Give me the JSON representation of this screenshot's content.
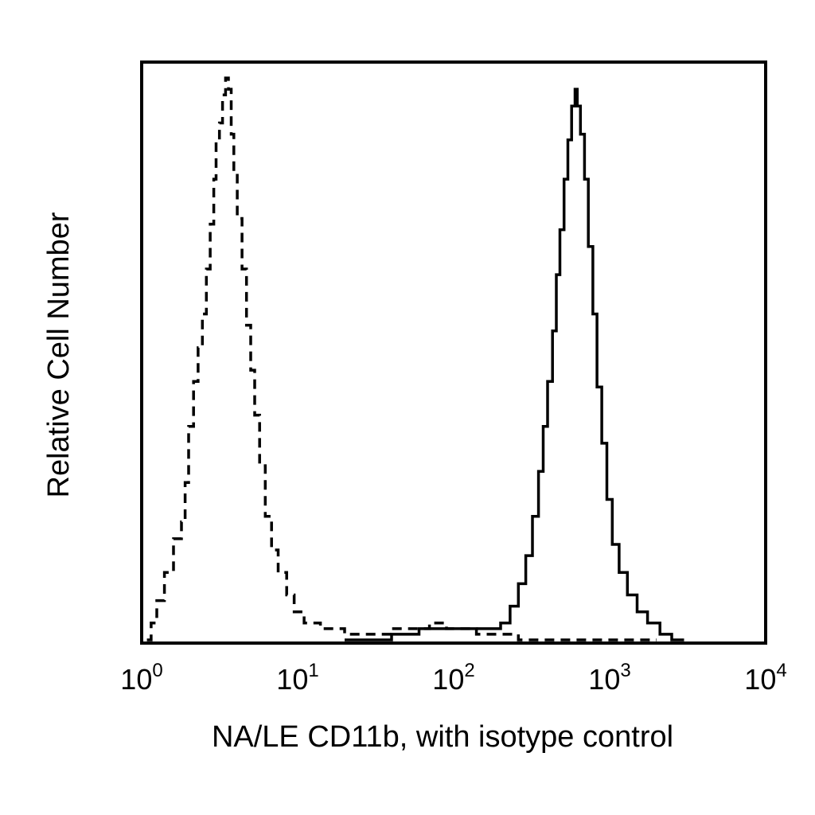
{
  "chart_data": {
    "type": "area",
    "title": "",
    "xlabel": "NA/LE CD11b, with isotype control",
    "ylabel": "Relative Cell Number",
    "x_scale": "log",
    "xlim": [
      1,
      10000
    ],
    "ylim": [
      0,
      100
    ],
    "x_ticks": [
      {
        "value": 1,
        "base": "10",
        "exp": "0"
      },
      {
        "value": 10,
        "base": "10",
        "exp": "1"
      },
      {
        "value": 100,
        "base": "10",
        "exp": "2"
      },
      {
        "value": 1000,
        "base": "10",
        "exp": "3"
      },
      {
        "value": 10000,
        "base": "10",
        "exp": "4"
      }
    ],
    "grid": false,
    "legend": "none",
    "series": [
      {
        "style": "dashed",
        "color": "#000000",
        "points": [
          [
            1.08,
            0
          ],
          [
            1.15,
            3
          ],
          [
            1.25,
            7
          ],
          [
            1.4,
            12
          ],
          [
            1.6,
            18
          ],
          [
            1.8,
            21
          ],
          [
            1.9,
            28
          ],
          [
            2.0,
            38
          ],
          [
            2.15,
            46
          ],
          [
            2.3,
            52
          ],
          [
            2.45,
            58
          ],
          [
            2.6,
            66
          ],
          [
            2.75,
            74
          ],
          [
            2.9,
            82
          ],
          [
            3.0,
            89
          ],
          [
            3.15,
            92
          ],
          [
            3.3,
            97
          ],
          [
            3.45,
            100
          ],
          [
            3.6,
            98
          ],
          [
            3.75,
            90
          ],
          [
            3.9,
            83
          ],
          [
            4.1,
            75
          ],
          [
            4.4,
            66
          ],
          [
            4.7,
            56
          ],
          [
            5.0,
            48
          ],
          [
            5.3,
            40
          ],
          [
            5.7,
            31
          ],
          [
            6.2,
            22
          ],
          [
            6.8,
            16
          ],
          [
            7.5,
            12
          ],
          [
            8.5,
            8
          ],
          [
            9.5,
            5
          ],
          [
            11,
            3
          ],
          [
            14,
            2
          ],
          [
            20,
            1
          ],
          [
            30,
            1
          ],
          [
            40,
            2
          ],
          [
            55,
            2
          ],
          [
            70,
            3
          ],
          [
            90,
            2
          ],
          [
            110,
            2
          ],
          [
            140,
            1
          ],
          [
            180,
            1
          ],
          [
            260,
            0
          ],
          [
            600,
            0
          ],
          [
            2000,
            0
          ]
        ]
      },
      {
        "style": "solid",
        "color": "#000000",
        "points": [
          [
            20,
            0
          ],
          [
            40,
            1
          ],
          [
            60,
            2
          ],
          [
            80,
            2
          ],
          [
            100,
            2
          ],
          [
            130,
            2
          ],
          [
            160,
            2
          ],
          [
            200,
            3
          ],
          [
            230,
            6
          ],
          [
            260,
            10
          ],
          [
            290,
            15
          ],
          [
            320,
            22
          ],
          [
            350,
            30
          ],
          [
            375,
            38
          ],
          [
            400,
            46
          ],
          [
            430,
            55
          ],
          [
            455,
            65
          ],
          [
            480,
            73
          ],
          [
            510,
            82
          ],
          [
            540,
            89
          ],
          [
            570,
            95
          ],
          [
            600,
            98
          ],
          [
            620,
            95
          ],
          [
            650,
            90
          ],
          [
            690,
            82
          ],
          [
            730,
            70
          ],
          [
            780,
            58
          ],
          [
            830,
            45
          ],
          [
            890,
            35
          ],
          [
            960,
            25
          ],
          [
            1040,
            17
          ],
          [
            1150,
            12
          ],
          [
            1300,
            8
          ],
          [
            1500,
            5
          ],
          [
            1750,
            3
          ],
          [
            2100,
            1
          ],
          [
            2500,
            0
          ],
          [
            3000,
            0
          ]
        ]
      }
    ]
  }
}
